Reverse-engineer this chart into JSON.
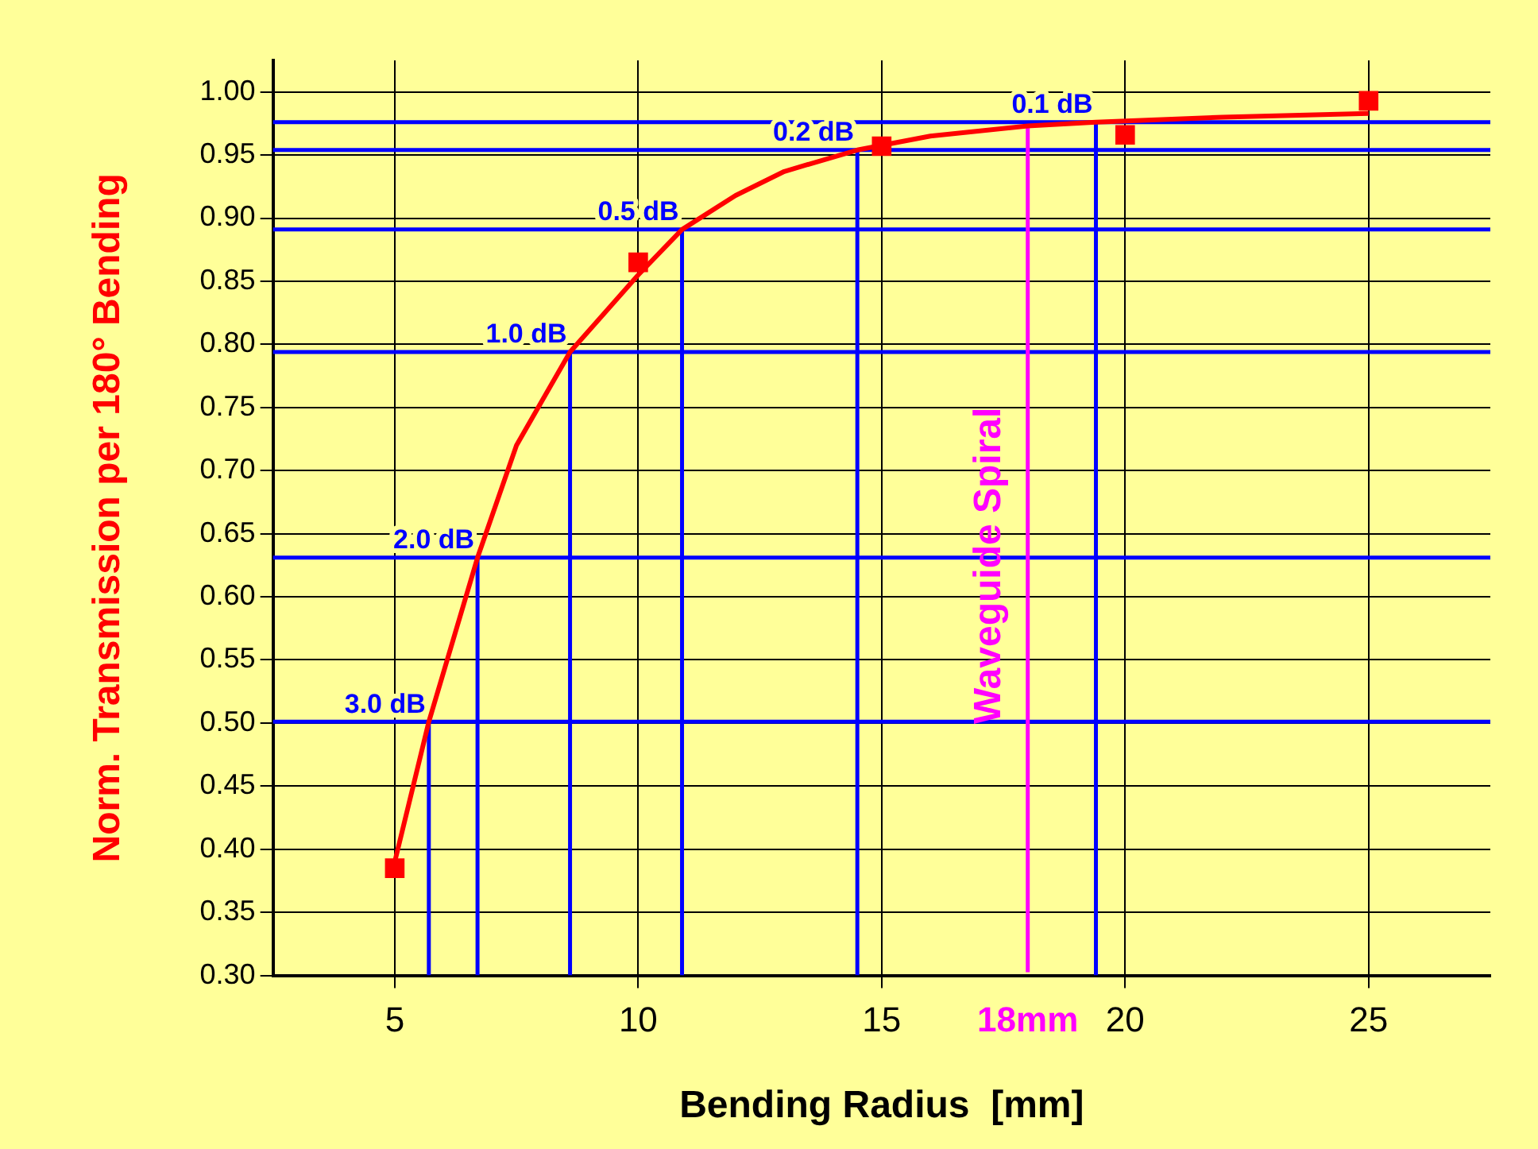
{
  "chart_data": {
    "type": "scatter",
    "xlabel": "Bending Radius  [mm]",
    "ylabel": "Norm. Transmission per 180° Bending",
    "xlim": [
      2.5,
      27.5
    ],
    "xticks": [
      5,
      10,
      15,
      {
        "value": 18,
        "label": "18mm"
      },
      20,
      25
    ],
    "ylim": [
      0.3,
      1.025
    ],
    "yticks": [
      {
        "value": 0.3,
        "label": "0.30"
      },
      {
        "value": 0.35,
        "label": "0.35"
      },
      {
        "value": 0.4,
        "label": "0.40"
      },
      {
        "value": 0.45,
        "label": "0.45"
      },
      {
        "value": 0.5,
        "label": "0.50"
      },
      {
        "value": 0.55,
        "label": "0.55"
      },
      {
        "value": 0.6,
        "label": "0.60"
      },
      {
        "value": 0.65,
        "label": "0.65"
      },
      {
        "value": 0.7,
        "label": "0.70"
      },
      {
        "value": 0.75,
        "label": "0.75"
      },
      {
        "value": 0.8,
        "label": "0.80"
      },
      {
        "value": 0.85,
        "label": "0.85"
      },
      {
        "value": 0.9,
        "label": "0.90"
      },
      {
        "value": 0.95,
        "label": "0.95"
      },
      {
        "value": 1.0,
        "label": "1.00"
      }
    ],
    "grid": true,
    "legend": false,
    "series": [
      {
        "type": "line",
        "color": "#ff0000",
        "marker": "none",
        "x": [
          5,
          5.7,
          6.7,
          7.5,
          8.6,
          10,
          10.9,
          12,
          13,
          14.5,
          16,
          18,
          19.4,
          22,
          25
        ],
        "values": [
          0.39,
          0.501,
          0.631,
          0.72,
          0.794,
          0.855,
          0.891,
          0.918,
          0.937,
          0.954,
          0.965,
          0.973,
          0.976,
          0.98,
          0.983
        ]
      },
      {
        "type": "line",
        "color": "#0000ff",
        "marker": "none",
        "x": [
          5.7,
          5.7
        ],
        "values": [
          0.3,
          0.501
        ]
      },
      {
        "type": "line",
        "color": "#0000ff",
        "marker": "none",
        "x": [
          6.7,
          6.7
        ],
        "values": [
          0.3,
          0.631
        ]
      },
      {
        "type": "line",
        "color": "#0000ff",
        "marker": "none",
        "x": [
          8.6,
          8.6
        ],
        "values": [
          0.3,
          0.794
        ]
      },
      {
        "type": "line",
        "color": "#0000ff",
        "marker": "none",
        "x": [
          10.9,
          10.9
        ],
        "values": [
          0.3,
          0.891
        ]
      },
      {
        "type": "line",
        "color": "#0000ff",
        "marker": "none",
        "x": [
          14.5,
          14.5
        ],
        "values": [
          0.3,
          0.954
        ]
      },
      {
        "type": "line",
        "color": "#0000ff",
        "marker": "none",
        "x": [
          19.4,
          19.4
        ],
        "values": [
          0.3,
          0.976
        ]
      },
      {
        "color": "#ff0000",
        "marker": "square",
        "x": [
          5,
          10,
          15,
          20,
          25
        ],
        "values": [
          0.385,
          0.865,
          0.957,
          0.966,
          0.993
        ]
      }
    ],
    "ref_lines": [
      {
        "axis": "y",
        "value": 0.976,
        "color": "#0000ff"
      },
      {
        "axis": "y",
        "value": 0.954,
        "color": "#0000ff"
      },
      {
        "axis": "y",
        "value": 0.891,
        "color": "#0000ff"
      },
      {
        "axis": "y",
        "value": 0.794,
        "color": "#0000ff"
      },
      {
        "axis": "y",
        "value": 0.631,
        "color": "#0000ff"
      },
      {
        "axis": "y",
        "value": 0.501,
        "color": "#0000ff"
      },
      {
        "axis": "x",
        "value": 18,
        "label": "Waveguide Spiral",
        "color": "#ff00ff"
      }
    ],
    "annotations": [
      {
        "text": "0.1 dB",
        "x": 19.4,
        "y": 0.976
      },
      {
        "text": "0.2 dB",
        "x": 14.5,
        "y": 0.954
      },
      {
        "text": "0.5 dB",
        "x": 10.9,
        "y": 0.891
      },
      {
        "text": "1.0 dB",
        "x": 8.6,
        "y": 0.794
      },
      {
        "text": "2.0 dB",
        "x": 6.7,
        "y": 0.631
      },
      {
        "text": "3.0 dB",
        "x": 5.7,
        "y": 0.501
      }
    ]
  }
}
